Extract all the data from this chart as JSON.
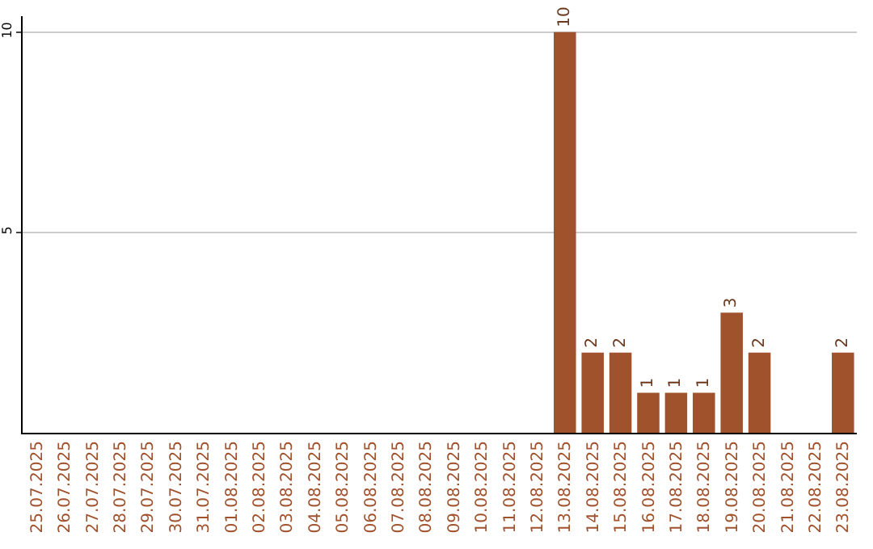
{
  "chart_data": {
    "type": "bar",
    "categories": [
      "25.07.2025",
      "26.07.2025",
      "27.07.2025",
      "28.07.2025",
      "29.07.2025",
      "30.07.2025",
      "31.07.2025",
      "01.08.2025",
      "02.08.2025",
      "03.08.2025",
      "04.08.2025",
      "05.08.2025",
      "06.08.2025",
      "07.08.2025",
      "08.08.2025",
      "09.08.2025",
      "10.08.2025",
      "11.08.2025",
      "12.08.2025",
      "13.08.2025",
      "14.08.2025",
      "15.08.2025",
      "16.08.2025",
      "17.08.2025",
      "18.08.2025",
      "19.08.2025",
      "20.08.2025",
      "21.08.2025",
      "22.08.2025",
      "23.08.2025"
    ],
    "values": [
      0,
      0,
      0,
      0,
      0,
      0,
      0,
      0,
      0,
      0,
      0,
      0,
      0,
      0,
      0,
      0,
      0,
      0,
      0,
      10,
      2,
      2,
      1,
      1,
      1,
      3,
      2,
      0,
      0,
      2
    ],
    "value_labels": [
      null,
      null,
      null,
      null,
      null,
      null,
      null,
      null,
      null,
      null,
      null,
      null,
      null,
      null,
      null,
      null,
      null,
      null,
      null,
      "10",
      "2",
      "2",
      "1",
      "1",
      "1",
      "3",
      "2",
      null,
      null,
      "2"
    ],
    "color": "#a0522d",
    "ylim": [
      0,
      10.4
    ],
    "yticks": [
      5,
      10
    ],
    "grid": "y"
  }
}
